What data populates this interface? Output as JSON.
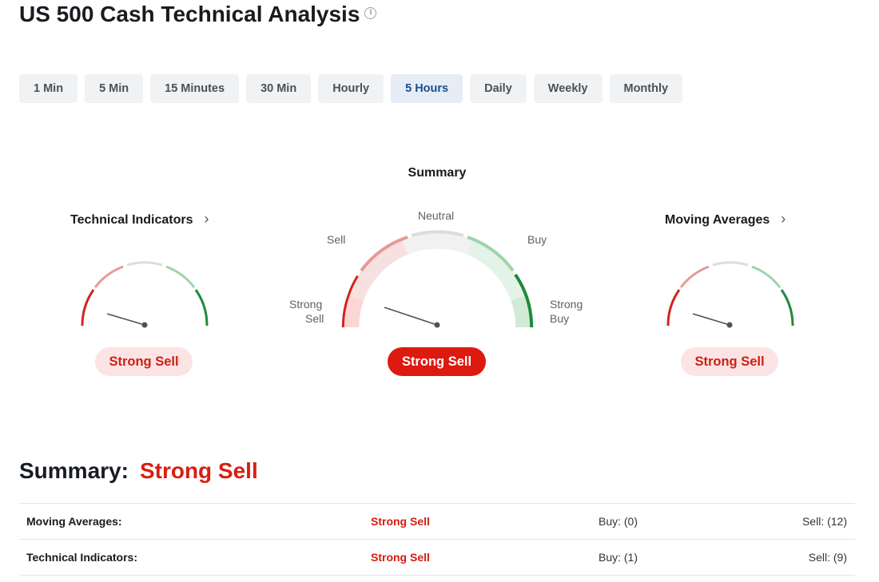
{
  "title": "US 500 Cash Technical Analysis",
  "info_icon": "info-circle-icon",
  "timeframes": [
    "1 Min",
    "5 Min",
    "15 Minutes",
    "30 Min",
    "Hourly",
    "5 Hours",
    "Daily",
    "Weekly",
    "Monthly"
  ],
  "active_timeframe": "5 Hours",
  "colors": {
    "strong_sell": "#d0261b",
    "sell": "#e79997",
    "neutral": "#dcdcdc",
    "buy": "#9fd4ab",
    "strong_buy": "#1e8a3c",
    "active_tab_text": "#1b4f8c"
  },
  "summary_gauge": {
    "label": "Summary",
    "labels": {
      "neutral": "Neutral",
      "sell": "Sell",
      "buy": "Buy",
      "strong_sell_1": "Strong",
      "strong_sell_2": "Sell",
      "strong_buy_1": "Strong",
      "strong_buy_2": "Buy"
    },
    "verdict": "Strong Sell"
  },
  "technical_indicators": {
    "title": "Technical Indicators",
    "chevron_icon": "chevron-right-icon",
    "verdict": "Strong Sell"
  },
  "moving_averages": {
    "title": "Moving Averages",
    "chevron_icon": "chevron-right-icon",
    "verdict": "Strong Sell"
  },
  "summary": {
    "heading": "Summary:",
    "verdict": "Strong Sell",
    "rows": [
      {
        "name": "Moving Averages:",
        "signal": "Strong Sell",
        "buy": "Buy: (0)",
        "sell": "Sell: (12)"
      },
      {
        "name": "Technical Indicators:",
        "signal": "Strong Sell",
        "buy": "Buy: (1)",
        "sell": "Sell: (9)"
      }
    ]
  }
}
